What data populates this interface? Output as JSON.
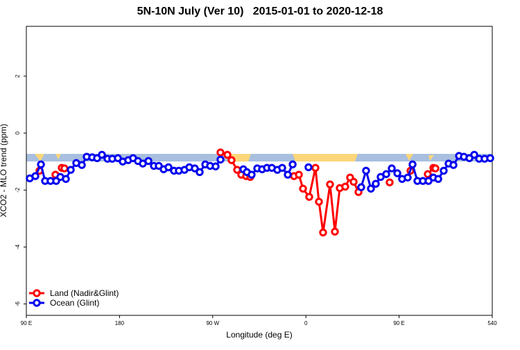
{
  "chart_data": {
    "type": "line",
    "title": "5N-10N July (Ver 10)   2015-01-01 to 2020-12-18",
    "x_label": "Longitude (deg E)",
    "y_label": "XCO2 - MLO trend (ppm)",
    "xlim": [
      90,
      540
    ],
    "ylim": [
      -6.4,
      3.75
    ],
    "xticks": [
      {
        "value": 90,
        "label": "90 E"
      },
      180,
      {
        "value": 270,
        "label": "90 W"
      },
      {
        "value": 360,
        "label": "0"
      },
      {
        "value": 450,
        "label": "90 E"
      },
      540
    ],
    "yticks": [
      -6,
      -4,
      -2,
      0,
      2
    ],
    "legend": "bottom-left",
    "series": [
      {
        "name": "Land (Nadir&Glint)",
        "color": "#ff0000",
        "x": [
          102.7,
          110,
          118.1,
          121,
          124.2,
          126.8,
          200,
          277.5,
          284.2,
          288.2,
          293.6,
          297.6,
          302.3,
          306.3,
          330,
          348.5,
          353.2,
          357.2,
          363.2,
          369.2,
          372.6,
          376.6,
          383.3,
          388.0,
          392.7,
          398.0,
          402.7,
          406.1,
          410.8,
          425,
          440.9,
          450,
          461.0,
          470,
          477.7,
          483.1,
          485.1
        ],
        "values": [
          -1.32,
          null,
          -1.46,
          null,
          -1.22,
          -1.24,
          null,
          -0.68,
          -0.76,
          -0.95,
          -1.29,
          -1.46,
          -1.51,
          -1.54,
          null,
          -1.51,
          -1.46,
          -1.95,
          -2.24,
          -1.22,
          -2.41,
          -3.49,
          -1.8,
          -3.46,
          -1.93,
          -1.88,
          -1.56,
          -1.71,
          -2.07,
          null,
          -1.73,
          null,
          -1.32,
          null,
          -1.44,
          -1.22,
          -1.24
        ]
      },
      {
        "name": "Ocean (Glint)",
        "color": "#0000ee",
        "x": [
          93.3,
          98.7,
          104.1,
          108.1,
          113.4,
          118.8,
          122.8,
          128.2,
          132.9,
          138.2,
          143.6,
          148.3,
          153.6,
          158.3,
          163.0,
          168.4,
          173.0,
          178.4,
          183.1,
          188.4,
          193.1,
          197.8,
          202.5,
          207.9,
          213.2,
          217.9,
          222.6,
          227.3,
          232.6,
          237.3,
          242.7,
          247.4,
          252.7,
          257.4,
          262.8,
          267.5,
          272.8,
          277.5,
          288,
          299.6,
          303.0,
          307.6,
          313.0,
          317.7,
          322.4,
          327.1,
          332.4,
          337.1,
          342.5,
          347.2,
          355,
          362.5,
          390,
          413.4,
          418.1,
          422.8,
          427.5,
          432.2,
          437.6,
          442.9,
          448.3,
          452.9,
          458.3,
          463.0,
          467.7,
          473.0,
          478.4,
          483.1,
          487.8,
          493.1,
          497.8,
          502.5,
          507.9,
          512.6,
          517.9,
          522.6,
          527.3,
          532.6,
          538.0
        ],
        "values": [
          -1.59,
          -1.51,
          -1.1,
          -1.68,
          -1.68,
          -1.68,
          -1.54,
          -1.61,
          -1.29,
          -1.05,
          -1.12,
          -0.83,
          -0.85,
          -0.88,
          -0.76,
          -0.9,
          -0.9,
          -0.88,
          -1.0,
          -0.95,
          -0.88,
          -0.98,
          -1.07,
          -0.98,
          -1.15,
          -1.15,
          -1.27,
          -1.2,
          -1.32,
          -1.32,
          -1.29,
          -1.2,
          -1.24,
          -1.37,
          -1.1,
          -1.15,
          -1.17,
          -0.93,
          null,
          -1.27,
          -1.37,
          -1.46,
          -1.24,
          -1.27,
          -1.22,
          -1.22,
          -1.29,
          -1.22,
          -1.46,
          -1.1,
          null,
          -1.2,
          null,
          -1.9,
          -1.32,
          -1.95,
          -1.78,
          -1.54,
          -1.44,
          -1.24,
          -1.41,
          -1.61,
          -1.56,
          -1.1,
          -1.68,
          -1.68,
          -1.68,
          -1.56,
          -1.61,
          -1.32,
          -1.07,
          -1.12,
          -0.8,
          -0.83,
          -0.88,
          -0.76,
          -0.9,
          -0.9,
          -0.88
        ]
      }
    ]
  }
}
